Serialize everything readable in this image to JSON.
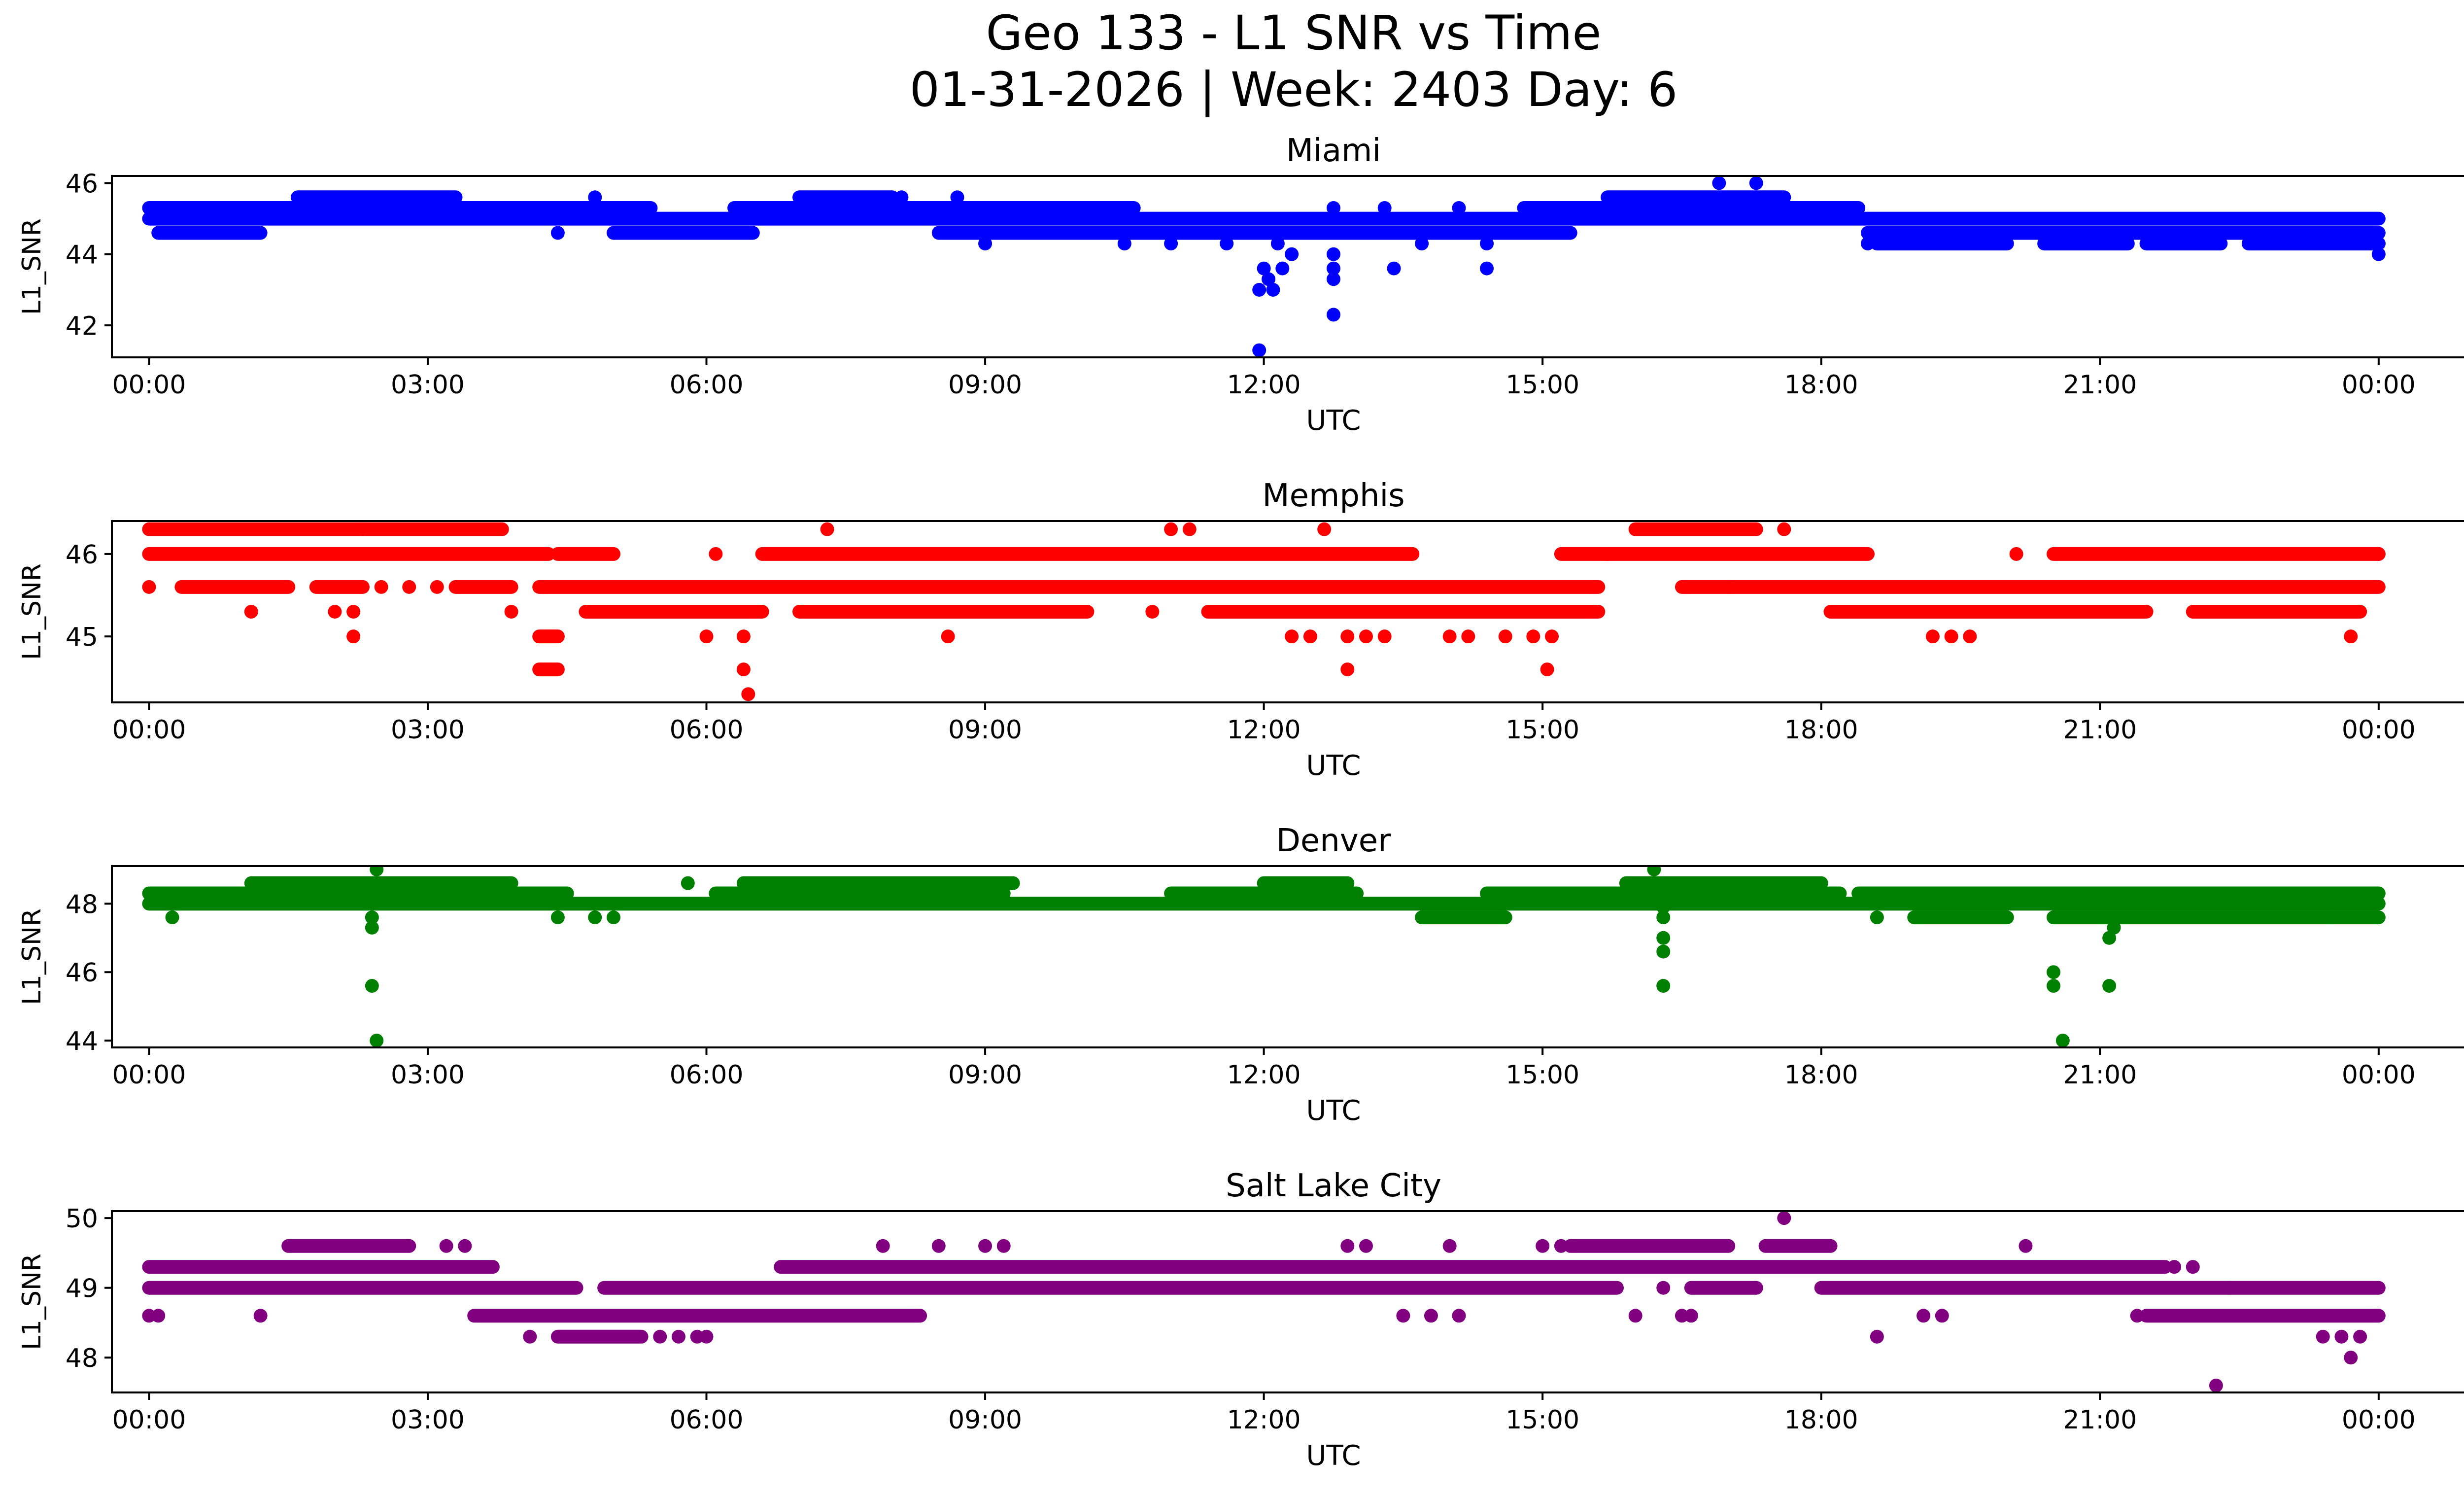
{
  "chart_data": {
    "type": "scatter",
    "title_line1": "Geo 133 - L1 SNR vs Time",
    "title_line2": "01-31-2026 | Week: 2403 Day: 6",
    "xlabel": "UTC",
    "ylabel": "L1_SNR",
    "xlim_hours": [
      -0.4,
      25.9
    ],
    "xticks": [
      {
        "h": 0,
        "label": "00:00"
      },
      {
        "h": 3,
        "label": "03:00"
      },
      {
        "h": 6,
        "label": "06:00"
      },
      {
        "h": 9,
        "label": "09:00"
      },
      {
        "h": 12,
        "label": "12:00"
      },
      {
        "h": 15,
        "label": "15:00"
      },
      {
        "h": 18,
        "label": "18:00"
      },
      {
        "h": 21,
        "label": "21:00"
      },
      {
        "h": 24,
        "label": "00:00"
      }
    ],
    "panels": [
      {
        "name": "Miami",
        "color": "#0000ff",
        "ylim": [
          41.1,
          46.2
        ],
        "yticks": [
          42,
          44,
          46
        ],
        "ytick_labels": [
          "42",
          "44",
          "46"
        ],
        "bands": [
          {
            "y": 45.3,
            "from": 0.0,
            "to": 5.4
          },
          {
            "y": 45.3,
            "from": 6.3,
            "to": 10.6
          },
          {
            "y": 45.0,
            "from": 0.0,
            "to": 24.0
          },
          {
            "y": 45.6,
            "from": 1.6,
            "to": 3.3
          },
          {
            "y": 45.6,
            "from": 7.0,
            "to": 8.0
          },
          {
            "y": 45.6,
            "from": 15.7,
            "to": 17.6
          },
          {
            "y": 45.3,
            "from": 14.8,
            "to": 18.4
          },
          {
            "y": 44.6,
            "from": 0.1,
            "to": 1.2
          },
          {
            "y": 44.6,
            "from": 5.0,
            "to": 6.5
          },
          {
            "y": 44.6,
            "from": 8.5,
            "to": 11.8
          },
          {
            "y": 44.6,
            "from": 11.8,
            "to": 15.3
          },
          {
            "y": 44.6,
            "from": 18.5,
            "to": 24.0
          },
          {
            "y": 44.3,
            "from": 18.6,
            "to": 20.0
          },
          {
            "y": 44.3,
            "from": 20.4,
            "to": 21.3
          },
          {
            "y": 44.3,
            "from": 21.5,
            "to": 22.3
          },
          {
            "y": 44.3,
            "from": 22.6,
            "to": 24.0
          }
        ],
        "points": [
          [
            4.4,
            44.6
          ],
          [
            4.8,
            45.6
          ],
          [
            8.1,
            45.6
          ],
          [
            8.7,
            45.6
          ],
          [
            9.0,
            44.3
          ],
          [
            10.5,
            44.3
          ],
          [
            11.0,
            44.3
          ],
          [
            11.6,
            44.3
          ],
          [
            11.95,
            41.3
          ],
          [
            11.95,
            43.0
          ],
          [
            12.0,
            43.6
          ],
          [
            12.05,
            43.3
          ],
          [
            12.1,
            43.0
          ],
          [
            12.15,
            44.3
          ],
          [
            12.2,
            43.6
          ],
          [
            12.3,
            44.0
          ],
          [
            12.75,
            45.3
          ],
          [
            12.75,
            43.3
          ],
          [
            12.75,
            43.6
          ],
          [
            12.75,
            44.0
          ],
          [
            12.75,
            42.3
          ],
          [
            13.3,
            45.3
          ],
          [
            13.4,
            43.6
          ],
          [
            13.7,
            44.3
          ],
          [
            14.1,
            45.3
          ],
          [
            14.4,
            44.3
          ],
          [
            14.4,
            43.6
          ],
          [
            16.9,
            46.0
          ],
          [
            17.3,
            46.0
          ],
          [
            17.3,
            45.6
          ],
          [
            18.5,
            44.3
          ],
          [
            24.0,
            44.0
          ],
          [
            24.0,
            44.3
          ]
        ]
      },
      {
        "name": "Memphis",
        "color": "#ff0000",
        "ylim": [
          44.2,
          46.4
        ],
        "yticks": [
          45,
          46
        ],
        "ytick_labels": [
          "45",
          "46"
        ],
        "bands": [
          {
            "y": 46.3,
            "from": 0.0,
            "to": 2.3
          },
          {
            "y": 46.3,
            "from": 2.3,
            "to": 3.8
          },
          {
            "y": 46.3,
            "from": 16.0,
            "to": 17.3
          },
          {
            "y": 46.0,
            "from": 0.0,
            "to": 4.3
          },
          {
            "y": 46.0,
            "from": 4.4,
            "to": 5.0
          },
          {
            "y": 46.0,
            "from": 6.6,
            "to": 13.6
          },
          {
            "y": 46.0,
            "from": 15.2,
            "to": 18.5
          },
          {
            "y": 46.0,
            "from": 20.5,
            "to": 24.0
          },
          {
            "y": 45.6,
            "from": 0.35,
            "to": 1.5
          },
          {
            "y": 45.6,
            "from": 1.8,
            "to": 2.3
          },
          {
            "y": 45.6,
            "from": 3.3,
            "to": 3.9
          },
          {
            "y": 45.6,
            "from": 4.2,
            "to": 15.6
          },
          {
            "y": 45.6,
            "from": 16.5,
            "to": 24.0
          },
          {
            "y": 45.3,
            "from": 4.7,
            "to": 6.6
          },
          {
            "y": 45.3,
            "from": 7.0,
            "to": 10.1
          },
          {
            "y": 45.3,
            "from": 11.4,
            "to": 15.6
          },
          {
            "y": 45.3,
            "from": 18.1,
            "to": 21.5
          },
          {
            "y": 45.3,
            "from": 22.0,
            "to": 23.8
          },
          {
            "y": 45.0,
            "from": 4.2,
            "to": 4.4
          },
          {
            "y": 44.6,
            "from": 4.2,
            "to": 4.4
          }
        ],
        "points": [
          [
            0.0,
            45.6
          ],
          [
            1.1,
            45.3
          ],
          [
            2.0,
            45.3
          ],
          [
            2.2,
            45.3
          ],
          [
            2.2,
            45.0
          ],
          [
            2.5,
            45.6
          ],
          [
            2.8,
            45.6
          ],
          [
            3.1,
            45.6
          ],
          [
            3.9,
            45.3
          ],
          [
            6.0,
            45.0
          ],
          [
            6.1,
            46.0
          ],
          [
            6.4,
            45.0
          ],
          [
            6.4,
            44.6
          ],
          [
            6.45,
            44.3
          ],
          [
            6.5,
            45.3
          ],
          [
            7.3,
            46.3
          ],
          [
            8.1,
            45.3
          ],
          [
            8.6,
            45.0
          ],
          [
            10.8,
            45.3
          ],
          [
            11.0,
            46.3
          ],
          [
            11.2,
            46.3
          ],
          [
            12.3,
            45.0
          ],
          [
            12.5,
            45.0
          ],
          [
            12.65,
            46.3
          ],
          [
            12.9,
            44.6
          ],
          [
            12.9,
            45.0
          ],
          [
            13.1,
            45.0
          ],
          [
            13.3,
            45.0
          ],
          [
            14.0,
            45.0
          ],
          [
            14.2,
            45.0
          ],
          [
            14.6,
            45.0
          ],
          [
            14.9,
            45.0
          ],
          [
            15.05,
            44.6
          ],
          [
            15.1,
            45.0
          ],
          [
            15.7,
            46.0
          ],
          [
            17.6,
            46.3
          ],
          [
            17.0,
            45.6
          ],
          [
            19.2,
            45.0
          ],
          [
            19.4,
            45.0
          ],
          [
            19.6,
            45.0
          ],
          [
            20.1,
            46.0
          ],
          [
            23.7,
            45.0
          ],
          [
            24.0,
            46.0
          ]
        ]
      },
      {
        "name": "Denver",
        "color": "#008000",
        "ylim": [
          43.8,
          49.1
        ],
        "yticks": [
          44,
          46,
          48
        ],
        "ytick_labels": [
          "44",
          "46",
          "48"
        ],
        "bands": [
          {
            "y": 48.3,
            "from": 0.0,
            "to": 3.8
          },
          {
            "y": 48.3,
            "from": 3.9,
            "to": 4.5
          },
          {
            "y": 48.3,
            "from": 6.1,
            "to": 9.2
          },
          {
            "y": 48.3,
            "from": 11.0,
            "to": 13.0
          },
          {
            "y": 48.3,
            "from": 14.4,
            "to": 18.2
          },
          {
            "y": 48.3,
            "from": 18.4,
            "to": 24.0
          },
          {
            "y": 48.6,
            "from": 1.1,
            "to": 3.9
          },
          {
            "y": 48.6,
            "from": 6.4,
            "to": 9.3
          },
          {
            "y": 48.6,
            "from": 12.0,
            "to": 12.9
          },
          {
            "y": 48.6,
            "from": 15.9,
            "to": 18.0
          },
          {
            "y": 48.0,
            "from": 0.0,
            "to": 24.0
          },
          {
            "y": 47.6,
            "from": 13.7,
            "to": 14.6
          },
          {
            "y": 47.6,
            "from": 19.0,
            "to": 20.0
          },
          {
            "y": 47.6,
            "from": 20.5,
            "to": 24.0
          }
        ],
        "points": [
          [
            0.25,
            47.6
          ],
          [
            2.4,
            47.6
          ],
          [
            2.4,
            47.3
          ],
          [
            2.4,
            45.6
          ],
          [
            2.45,
            44.0
          ],
          [
            2.45,
            49.0
          ],
          [
            4.4,
            47.6
          ],
          [
            4.8,
            47.6
          ],
          [
            5.0,
            47.6
          ],
          [
            5.8,
            48.6
          ],
          [
            16.2,
            49.0
          ],
          [
            16.3,
            47.9
          ],
          [
            16.3,
            47.6
          ],
          [
            16.3,
            47.0
          ],
          [
            16.3,
            46.6
          ],
          [
            16.3,
            45.6
          ],
          [
            18.6,
            47.6
          ],
          [
            20.5,
            46.0
          ],
          [
            20.5,
            45.6
          ],
          [
            20.6,
            44.0
          ],
          [
            21.1,
            47.0
          ],
          [
            21.15,
            47.3
          ],
          [
            21.1,
            45.6
          ],
          [
            23.5,
            47.6
          ],
          [
            23.6,
            48.3
          ]
        ]
      },
      {
        "name": "Salt Lake City",
        "color": "#800080",
        "ylim": [
          47.5,
          50.1
        ],
        "yticks": [
          48,
          49,
          50
        ],
        "ytick_labels": [
          "48",
          "49",
          "50"
        ],
        "bands": [
          {
            "y": 49.3,
            "from": 0.0,
            "to": 3.7
          },
          {
            "y": 49.3,
            "from": 6.8,
            "to": 21.7
          },
          {
            "y": 49.0,
            "from": 0.0,
            "to": 4.6
          },
          {
            "y": 49.0,
            "from": 4.9,
            "to": 15.8
          },
          {
            "y": 49.0,
            "from": 16.6,
            "to": 17.3
          },
          {
            "y": 49.0,
            "from": 18.0,
            "to": 24.0
          },
          {
            "y": 49.6,
            "from": 1.5,
            "to": 2.8
          },
          {
            "y": 49.6,
            "from": 15.3,
            "to": 17.0
          },
          {
            "y": 49.6,
            "from": 17.4,
            "to": 18.1
          },
          {
            "y": 48.6,
            "from": 3.5,
            "to": 8.3
          },
          {
            "y": 48.6,
            "from": 21.5,
            "to": 24.0
          },
          {
            "y": 48.3,
            "from": 4.4,
            "to": 5.3
          }
        ],
        "points": [
          [
            0.0,
            48.6
          ],
          [
            0.1,
            48.6
          ],
          [
            1.2,
            48.6
          ],
          [
            3.2,
            49.6
          ],
          [
            3.4,
            49.6
          ],
          [
            4.1,
            48.3
          ],
          [
            5.5,
            48.3
          ],
          [
            5.7,
            48.3
          ],
          [
            5.9,
            48.3
          ],
          [
            6.0,
            48.3
          ],
          [
            7.9,
            49.6
          ],
          [
            8.5,
            49.6
          ],
          [
            9.0,
            49.6
          ],
          [
            9.2,
            49.6
          ],
          [
            12.9,
            49.6
          ],
          [
            13.1,
            49.6
          ],
          [
            13.5,
            48.6
          ],
          [
            13.8,
            48.6
          ],
          [
            14.0,
            49.6
          ],
          [
            14.1,
            48.6
          ],
          [
            15.0,
            49.6
          ],
          [
            15.2,
            49.6
          ],
          [
            16.0,
            48.6
          ],
          [
            16.3,
            49.0
          ],
          [
            16.5,
            48.6
          ],
          [
            16.6,
            48.6
          ],
          [
            17.6,
            50.0
          ],
          [
            18.6,
            48.3
          ],
          [
            19.1,
            48.6
          ],
          [
            19.3,
            48.6
          ],
          [
            20.2,
            49.6
          ],
          [
            21.4,
            48.6
          ],
          [
            21.8,
            49.3
          ],
          [
            22.0,
            49.3
          ],
          [
            22.25,
            47.6
          ],
          [
            22.4,
            49.0
          ],
          [
            23.4,
            48.3
          ],
          [
            23.6,
            48.3
          ],
          [
            23.7,
            48.0
          ],
          [
            23.8,
            48.3
          ]
        ]
      }
    ]
  }
}
